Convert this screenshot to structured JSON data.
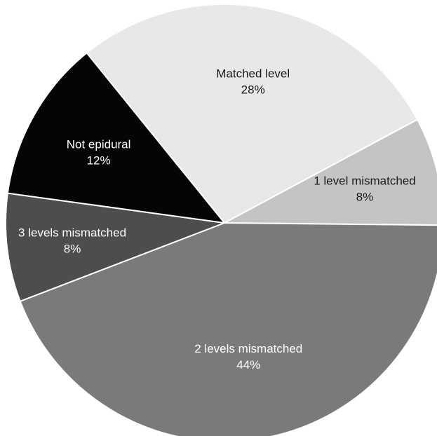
{
  "chart_data": {
    "type": "pie",
    "title": "",
    "slices": [
      {
        "label": "Matched level",
        "value": 28,
        "value_label": "28%",
        "color": "#e8e8e8",
        "text_color": "#1a1a1a"
      },
      {
        "label": "1 level mismatched",
        "value": 8,
        "value_label": "8%",
        "color": "#c4c4c4",
        "text_color": "#1a1a1a"
      },
      {
        "label": "2 levels mismatched",
        "value": 44,
        "value_label": "44%",
        "color": "#7a7a7a",
        "text_color": "#ffffff"
      },
      {
        "label": "3 levels mismatched",
        "value": 8,
        "value_label": "8%",
        "color": "#4d4d4d",
        "text_color": "#ffffff"
      },
      {
        "label": "Not epidural",
        "value": 12,
        "value_label": "12%",
        "color": "#050505",
        "text_color": "#ffffff"
      }
    ],
    "legend": "none"
  }
}
